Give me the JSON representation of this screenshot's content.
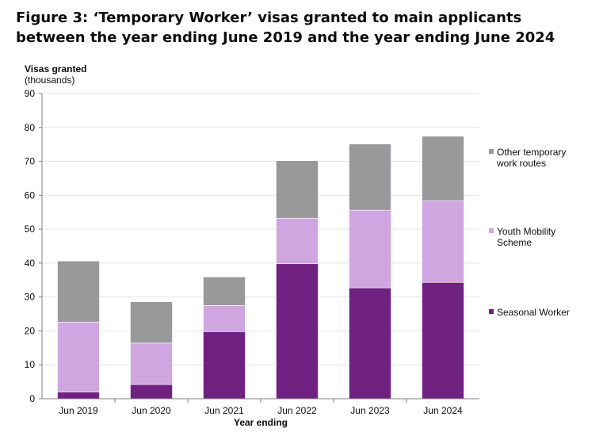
{
  "title": "Figure 3: ‘Temporary Worker’ visas granted to main applicants between the year ending June 2019 and the year ending June 2024",
  "chart_data": {
    "type": "bar",
    "stacked": true,
    "title": "Figure 3: ‘Temporary Worker’ visas granted to main applicants between the year ending June 2019 and the year ending June 2024",
    "ylabel": "Visas granted",
    "ylabel_sub": "(thousands)",
    "xlabel": "Year ending",
    "ylim": [
      0,
      90
    ],
    "yticks": [
      0,
      10,
      20,
      30,
      40,
      50,
      60,
      70,
      80,
      90
    ],
    "categories": [
      "Jun 2019",
      "Jun 2020",
      "Jun 2021",
      "Jun 2022",
      "Jun 2023",
      "Jun 2024"
    ],
    "series": [
      {
        "name": "Seasonal Worker",
        "color": "#6f2282",
        "values": [
          2.0,
          4.2,
          19.8,
          39.8,
          32.7,
          34.3
        ]
      },
      {
        "name": "Youth Mobility Scheme",
        "color": "#d0a6e0",
        "values": [
          20.6,
          12.2,
          7.7,
          13.4,
          22.9,
          24.1
        ]
      },
      {
        "name": "Other temporary work routes",
        "color": "#99999b",
        "values": [
          18.0,
          12.2,
          8.4,
          17.0,
          19.5,
          19.0
        ]
      }
    ],
    "legend": {
      "placement": "right",
      "entries": [
        {
          "lines": [
            "Other temporary",
            "work routes"
          ],
          "color": "#99999b"
        },
        {
          "lines": [
            "Youth Mobility",
            "Scheme"
          ],
          "color": "#d0a6e0"
        },
        {
          "lines": [
            "Seasonal Worker"
          ],
          "color": "#6f2282"
        }
      ]
    },
    "grid": true,
    "gridline_color": "#e6e6e6"
  }
}
